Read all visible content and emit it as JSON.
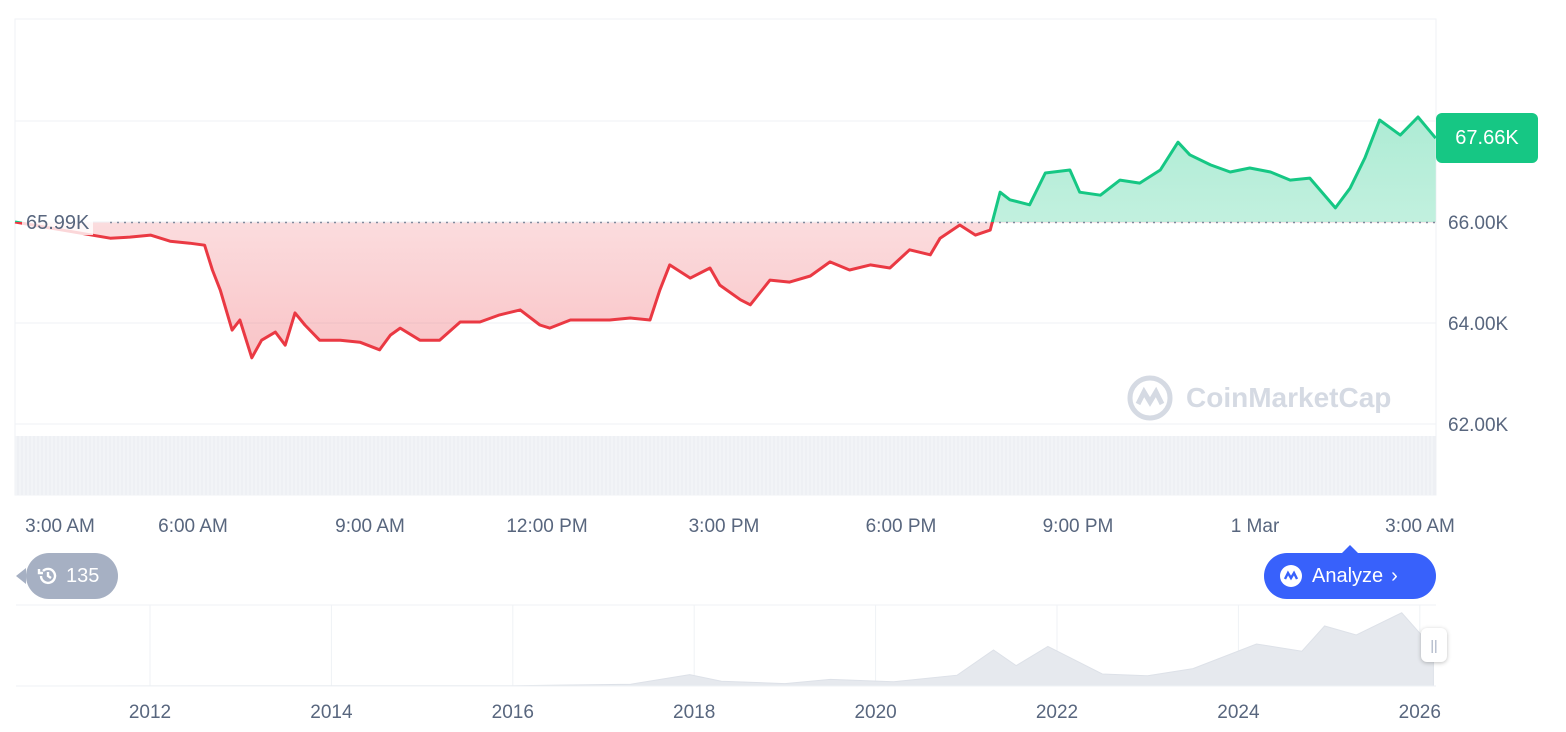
{
  "chart_data": {
    "type": "line",
    "title": "",
    "xlabel": "",
    "ylabel": "",
    "x_unit": "minutes after 3:00 AM",
    "x": [
      -46,
      51,
      71,
      92,
      112,
      132,
      147,
      155,
      163,
      175,
      183,
      195,
      205,
      219,
      229,
      239,
      249,
      264,
      285,
      305,
      325,
      336,
      346,
      366,
      386,
      407,
      427,
      447,
      468,
      488,
      498,
      519,
      539,
      559,
      580,
      600,
      610,
      620,
      641,
      661,
      671,
      692,
      702,
      722,
      742,
      763,
      783,
      803,
      824,
      844,
      864,
      885,
      895,
      915,
      931,
      946,
      956,
      966,
      986,
      1002,
      1027,
      1037,
      1058,
      1078,
      1098,
      1119,
      1137,
      1149,
      1170,
      1190,
      1210,
      1231,
      1251,
      1271,
      1297,
      1312,
      1327,
      1342,
      1363,
      1381,
      1399
    ],
    "price_k": [
      66.0,
      65.68,
      65.7,
      65.74,
      65.62,
      65.58,
      65.54,
      65.05,
      64.65,
      63.86,
      64.06,
      63.31,
      63.66,
      63.82,
      63.56,
      64.2,
      63.96,
      63.66,
      63.66,
      63.62,
      63.47,
      63.76,
      63.9,
      63.66,
      63.66,
      64.02,
      64.02,
      64.16,
      64.26,
      63.96,
      63.9,
      64.06,
      64.06,
      64.06,
      64.1,
      64.06,
      64.65,
      65.15,
      64.89,
      65.09,
      64.75,
      64.46,
      64.36,
      64.85,
      64.81,
      64.93,
      65.21,
      65.05,
      65.15,
      65.09,
      65.45,
      65.35,
      65.68,
      65.94,
      65.74,
      65.84,
      66.59,
      66.44,
      66.34,
      66.97,
      67.03,
      66.59,
      66.53,
      66.83,
      66.77,
      67.03,
      67.58,
      67.33,
      67.13,
      66.99,
      67.07,
      66.99,
      66.83,
      66.87,
      66.28,
      66.67,
      67.27,
      68.02,
      67.72,
      68.08,
      67.66
    ],
    "ylim": [
      61.5,
      69.9
    ],
    "yticks": [
      "66.00K",
      "64.00K",
      "62.00K"
    ],
    "xticks": [
      "3:00 AM",
      "6:00 AM",
      "9:00 AM",
      "12:00 PM",
      "3:00 PM",
      "6:00 PM",
      "9:00 PM",
      "1 Mar",
      "3:00 AM"
    ],
    "reference_label": "65.99K",
    "reference_value": 65.99,
    "current_label": "67.66K",
    "colors": {
      "up": "#16c784",
      "down": "#ea3943",
      "tag": "#16c784"
    },
    "navigator": {
      "xticks": [
        "2012",
        "2014",
        "2016",
        "2018",
        "2020",
        "2022",
        "2024",
        "2026"
      ],
      "years": [
        2010.6,
        2013,
        2016,
        2017.3,
        2017.95,
        2018.3,
        2019,
        2019.5,
        2020.2,
        2020.9,
        2021.3,
        2021.55,
        2021.9,
        2022.5,
        2023,
        2023.5,
        2024.2,
        2024.7,
        2024.95,
        2025.3,
        2025.8,
        2026.0,
        2026.15
      ],
      "price_k": [
        0,
        0.5,
        0.5,
        3,
        19,
        8,
        4,
        11,
        7,
        18,
        60,
        34,
        66,
        20,
        17,
        29,
        70,
        58,
        100,
        85,
        122,
        88,
        68
      ]
    }
  },
  "history_count": "135",
  "analyze_label": "Analyze",
  "watermark": "CoinMarketCap"
}
